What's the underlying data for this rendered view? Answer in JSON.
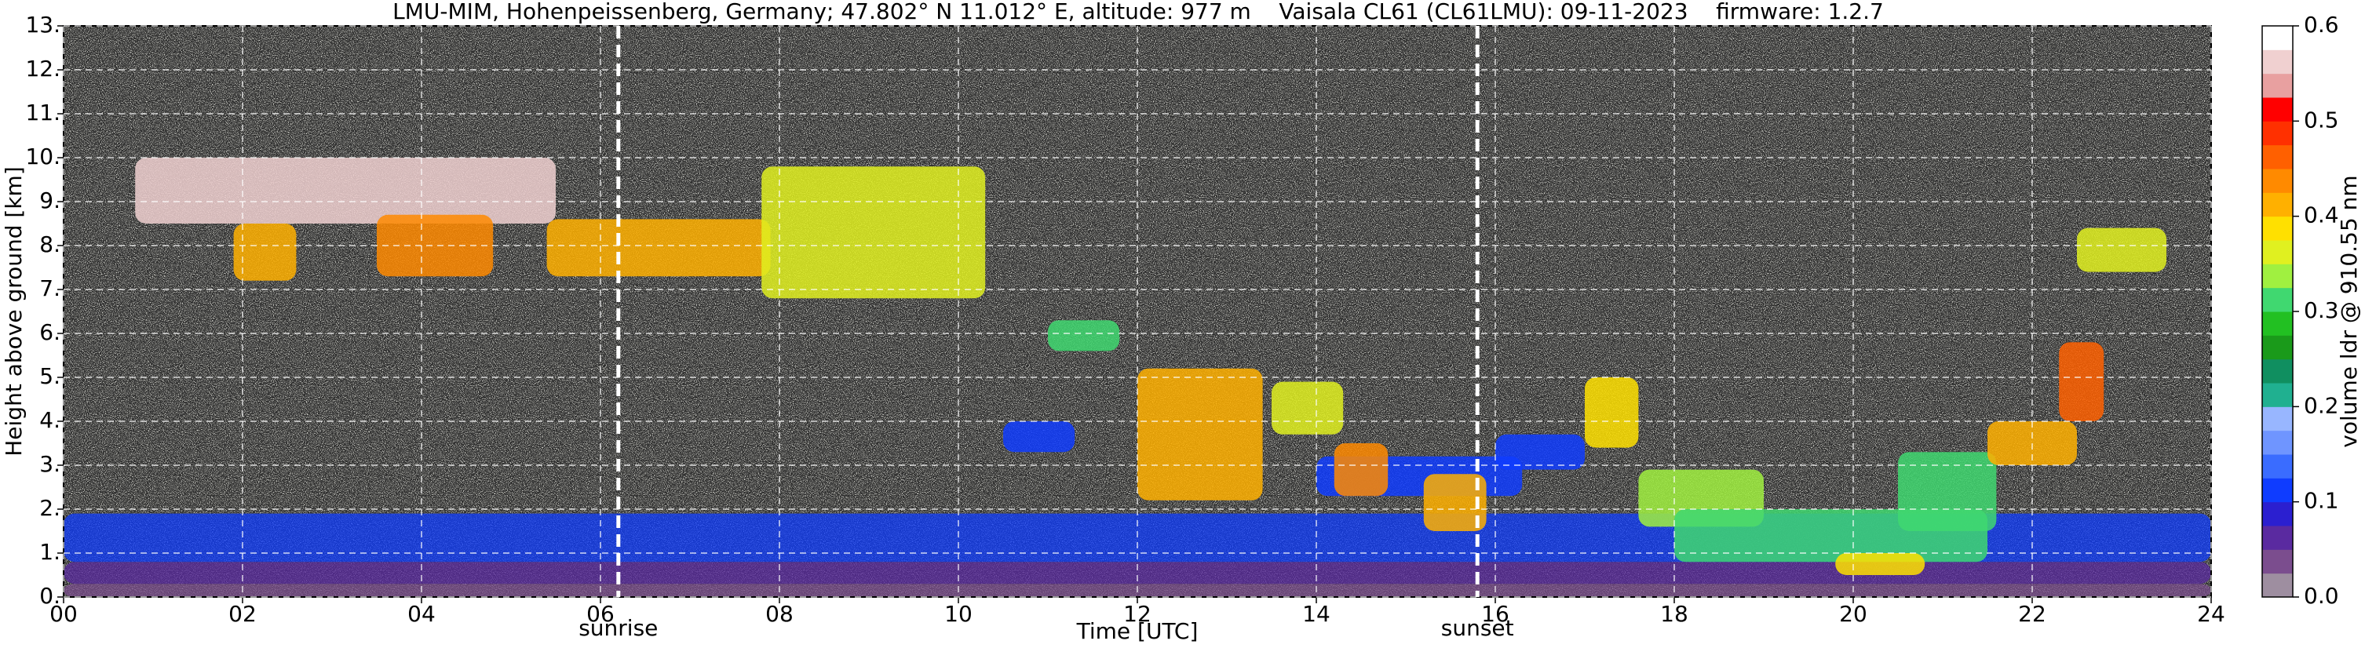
{
  "chart_data": {
    "type": "heatmap",
    "title": "LMU-MIM, Hohenpeissenberg, Germany; 47.802° N 11.012° E, altitude: 977 m    Vaisala CL61 (CL61LMU): 09-11-2023    firmware: 1.2.7",
    "x_label": "Time [UTC]",
    "y_label": "Height above ground [km]",
    "colorbar_label": "volume ldr @ 910.55 nm",
    "xlim": [
      0,
      24
    ],
    "xticks": [
      {
        "value": 0,
        "label": "00"
      },
      {
        "value": 2,
        "label": "02"
      },
      {
        "value": 4,
        "label": "04"
      },
      {
        "value": 6,
        "label": "06"
      },
      {
        "value": 8,
        "label": "08"
      },
      {
        "value": 10,
        "label": "10"
      },
      {
        "value": 12,
        "label": "12"
      },
      {
        "value": 14,
        "label": "14"
      },
      {
        "value": 16,
        "label": "16"
      },
      {
        "value": 18,
        "label": "18"
      },
      {
        "value": 20,
        "label": "20"
      },
      {
        "value": 22,
        "label": "22"
      },
      {
        "value": 24,
        "label": "24"
      }
    ],
    "ylim": [
      0,
      13
    ],
    "yticks": [
      {
        "value": 0,
        "label": "0."
      },
      {
        "value": 1,
        "label": "1."
      },
      {
        "value": 2,
        "label": "2."
      },
      {
        "value": 3,
        "label": "3."
      },
      {
        "value": 4,
        "label": "4."
      },
      {
        "value": 5,
        "label": "5."
      },
      {
        "value": 6,
        "label": "6."
      },
      {
        "value": 7,
        "label": "7."
      },
      {
        "value": 8,
        "label": "8."
      },
      {
        "value": 9,
        "label": "9."
      },
      {
        "value": 10,
        "label": "10."
      },
      {
        "value": 11,
        "label": "11."
      },
      {
        "value": 12,
        "label": "12."
      },
      {
        "value": 13,
        "label": "13."
      }
    ],
    "clim": [
      0,
      0.6
    ],
    "cticks": [
      {
        "value": 0,
        "label": "0.0"
      },
      0.1,
      0.2,
      0.3,
      0.4,
      0.5,
      0.6
    ],
    "colormap": [
      "#9e8ea0",
      "#7b4d8e",
      "#5a2aa0",
      "#2b1fd0",
      "#0f3cff",
      "#3a6cff",
      "#6f95ff",
      "#98b6ff",
      "#20b090",
      "#108f60",
      "#1a9a1a",
      "#22c022",
      "#40d870",
      "#a0f040",
      "#e0f020",
      "#ffe000",
      "#ffb000",
      "#ff8a00",
      "#ff6000",
      "#ff3000",
      "#ff0000",
      "#e8a0a0",
      "#f0d0d0",
      "#ffffff"
    ],
    "grid": true,
    "annotations": [
      {
        "text": "sunrise",
        "x": 6.2
      },
      {
        "text": "sunset",
        "x": 15.8
      }
    ],
    "cells": [
      {
        "x": [
          0,
          24
        ],
        "y": [
          0,
          0.3
        ],
        "value": 0.03
      },
      {
        "x": [
          0,
          24
        ],
        "y": [
          0.3,
          0.8
        ],
        "value": 0.06
      },
      {
        "x": [
          0,
          24
        ],
        "y": [
          0.8,
          1.9
        ],
        "value": 0.1
      },
      {
        "x": [
          0.8,
          5.5
        ],
        "y": [
          8.5,
          10
        ],
        "value": 0.55
      },
      {
        "x": [
          1.9,
          2.6
        ],
        "y": [
          7.2,
          8.5
        ],
        "value": 0.42
      },
      {
        "x": [
          3.5,
          4.8
        ],
        "y": [
          7.3,
          8.7
        ],
        "value": 0.43
      },
      {
        "x": [
          5.4,
          7.9
        ],
        "y": [
          7.3,
          8.6
        ],
        "value": 0.4
      },
      {
        "x": [
          7.8,
          10.3
        ],
        "y": [
          6.8,
          9.8
        ],
        "value": 0.35
      },
      {
        "x": [
          11,
          11.8
        ],
        "y": [
          5.6,
          6.3
        ],
        "value": 0.3
      },
      {
        "x": [
          10.5,
          11.3
        ],
        "y": [
          3.3,
          4
        ],
        "value": 0.1
      },
      {
        "x": [
          12,
          13.4
        ],
        "y": [
          2.2,
          5.2
        ],
        "value": 0.42
      },
      {
        "x": [
          13.5,
          14.3
        ],
        "y": [
          3.7,
          4.9
        ],
        "value": 0.35
      },
      {
        "x": [
          14,
          16.3
        ],
        "y": [
          2.3,
          3.2
        ],
        "value": 0.12
      },
      {
        "x": [
          14.2,
          14.8
        ],
        "y": [
          2.3,
          3.5
        ],
        "value": 0.43
      },
      {
        "x": [
          15.2,
          15.9
        ],
        "y": [
          1.5,
          2.8
        ],
        "value": 0.4
      },
      {
        "x": [
          16,
          17
        ],
        "y": [
          2.9,
          3.7
        ],
        "value": 0.12
      },
      {
        "x": [
          17,
          17.6
        ],
        "y": [
          3.4,
          5
        ],
        "value": 0.38
      },
      {
        "x": [
          17.6,
          19
        ],
        "y": [
          1.6,
          2.9
        ],
        "value": 0.33
      },
      {
        "x": [
          18,
          21.5
        ],
        "y": [
          0.8,
          2
        ],
        "value": 0.32
      },
      {
        "x": [
          19.8,
          20.8
        ],
        "y": [
          0.5,
          1
        ],
        "value": 0.38
      },
      {
        "x": [
          20.5,
          21.6
        ],
        "y": [
          1.5,
          3.3
        ],
        "value": 0.3
      },
      {
        "x": [
          21.5,
          22.5
        ],
        "y": [
          3,
          4
        ],
        "value": 0.42
      },
      {
        "x": [
          22.3,
          22.8
        ],
        "y": [
          4,
          5.8
        ],
        "value": 0.47
      },
      {
        "x": [
          22.5,
          23.5
        ],
        "y": [
          7.4,
          8.4
        ],
        "value": 0.35
      }
    ]
  }
}
